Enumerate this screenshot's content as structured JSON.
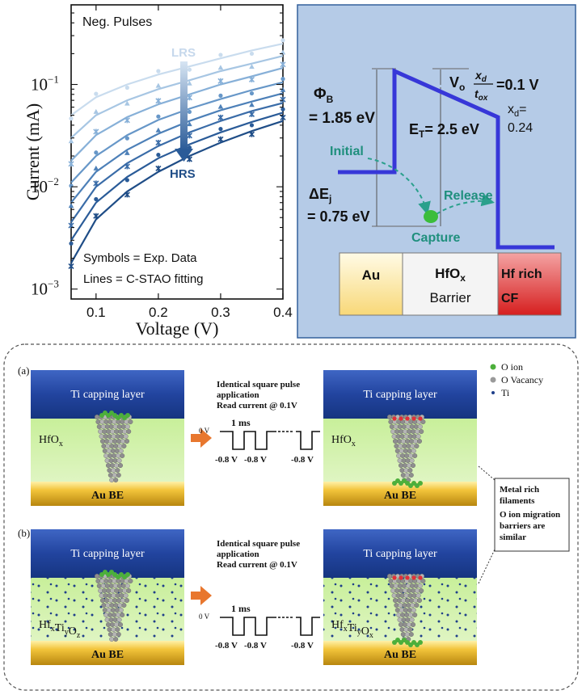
{
  "iv_chart": {
    "type": "line",
    "title": "Neg. Pulses",
    "xlabel": "Voltage (V)",
    "ylabel": "Current (mA)",
    "x_ticks": [
      "0.1",
      "0.2",
      "0.3",
      "0.4"
    ],
    "y_ticks": [
      {
        "base": "10",
        "exp": "−1"
      },
      {
        "base": "10",
        "exp": "−2"
      },
      {
        "base": "10",
        "exp": "−3"
      }
    ],
    "arrow_top": "LRS",
    "arrow_bottom": "HRS",
    "note_symbols": "Symbols = Exp. Data",
    "note_lines": "Lines = C-STAO fitting"
  },
  "chart_data": {
    "type": "line",
    "xlim": [
      0.06,
      0.4
    ],
    "ylim": [
      0.0008,
      0.6
    ],
    "yscale": "log",
    "x": [
      0.06,
      0.1,
      0.15,
      0.2,
      0.25,
      0.3,
      0.35,
      0.4
    ],
    "series": [
      {
        "values": [
          0.05,
          0.075,
          0.1,
          0.125,
          0.15,
          0.18,
          0.215,
          0.25
        ],
        "color": "#c9dcee"
      },
      {
        "values": [
          0.03,
          0.05,
          0.07,
          0.09,
          0.11,
          0.135,
          0.16,
          0.19
        ],
        "color": "#a7c6e3"
      },
      {
        "values": [
          0.018,
          0.032,
          0.048,
          0.064,
          0.08,
          0.1,
          0.12,
          0.145
        ],
        "color": "#87b0d8"
      },
      {
        "values": [
          0.011,
          0.02,
          0.032,
          0.045,
          0.058,
          0.072,
          0.088,
          0.105
        ],
        "color": "#6797c8"
      },
      {
        "values": [
          0.007,
          0.014,
          0.023,
          0.033,
          0.044,
          0.056,
          0.068,
          0.082
        ],
        "color": "#4d80b8"
      },
      {
        "values": [
          0.0045,
          0.01,
          0.017,
          0.025,
          0.034,
          0.044,
          0.055,
          0.066
        ],
        "color": "#3a6ca8"
      },
      {
        "values": [
          0.003,
          0.007,
          0.0125,
          0.019,
          0.026,
          0.034,
          0.043,
          0.053
        ],
        "color": "#2a5b98"
      },
      {
        "values": [
          0.0018,
          0.0048,
          0.009,
          0.014,
          0.02,
          0.027,
          0.035,
          0.044
        ],
        "color": "#1f4d87"
      }
    ]
  },
  "band": {
    "phi_b": "Φ",
    "phi_b_sub": "B",
    "phi_b_value": "= 1.85 eV",
    "vo_label": "V",
    "vo_sub": "o",
    "frac_top": "x",
    "frac_top_sub": "d",
    "frac_bottom": "t",
    "frac_bottom_sub": "ox",
    "vo_value": "=0.1 V",
    "xd_label": "x",
    "xd_sub": "d",
    "xd_eq": "=",
    "xd_value": "0.24",
    "et_label": "E",
    "et_sub": "T",
    "et_value": "= 2.5 eV",
    "initial": "Initial",
    "release": "Release",
    "capture": "Capture",
    "dej_label": "ΔE",
    "dej_sub": "j",
    "dej_value": "= 0.75 eV",
    "au": "Au",
    "hfox_main": "HfO",
    "hfox_sub": "x",
    "barrier": "Barrier",
    "hf_rich": "Hf rich",
    "cf": "CF"
  },
  "schematic": {
    "panel_a": "(a)",
    "panel_b": "(b)",
    "ti_cap": "Ti capping layer",
    "au_be": "Au BE",
    "hfox": "HfO",
    "hfox_sub": "x",
    "hftio_parts": [
      {
        "t": "Hf",
        "s": "x"
      },
      {
        "t": "Ti",
        "s": "y"
      },
      {
        "t": "O",
        "s": "z"
      }
    ],
    "hftio_right_parts": [
      {
        "t": "Hf",
        "s": "x"
      },
      {
        "t": "Ti",
        "s": "y"
      },
      {
        "t": "O",
        "s": "x"
      }
    ],
    "pulse_desc": [
      "Identical square pulse",
      "application",
      "Read current @ 0.1V"
    ],
    "zero_v": "0 V",
    "pulse_width": "1 ms",
    "pulse_v1": "-0.8 V",
    "pulse_v2": "-0.8 V",
    "pulse_v3": "-0.8 V",
    "legend": [
      {
        "label": "O ion",
        "color": "#4caf3b"
      },
      {
        "label": "O Vacancy",
        "color": "#9a9a9a"
      },
      {
        "label": "Ti",
        "color": "#1f3f8a"
      }
    ],
    "callout": [
      "Metal rich",
      "filaments",
      "O ion migration",
      "barriers are",
      "similar"
    ]
  }
}
